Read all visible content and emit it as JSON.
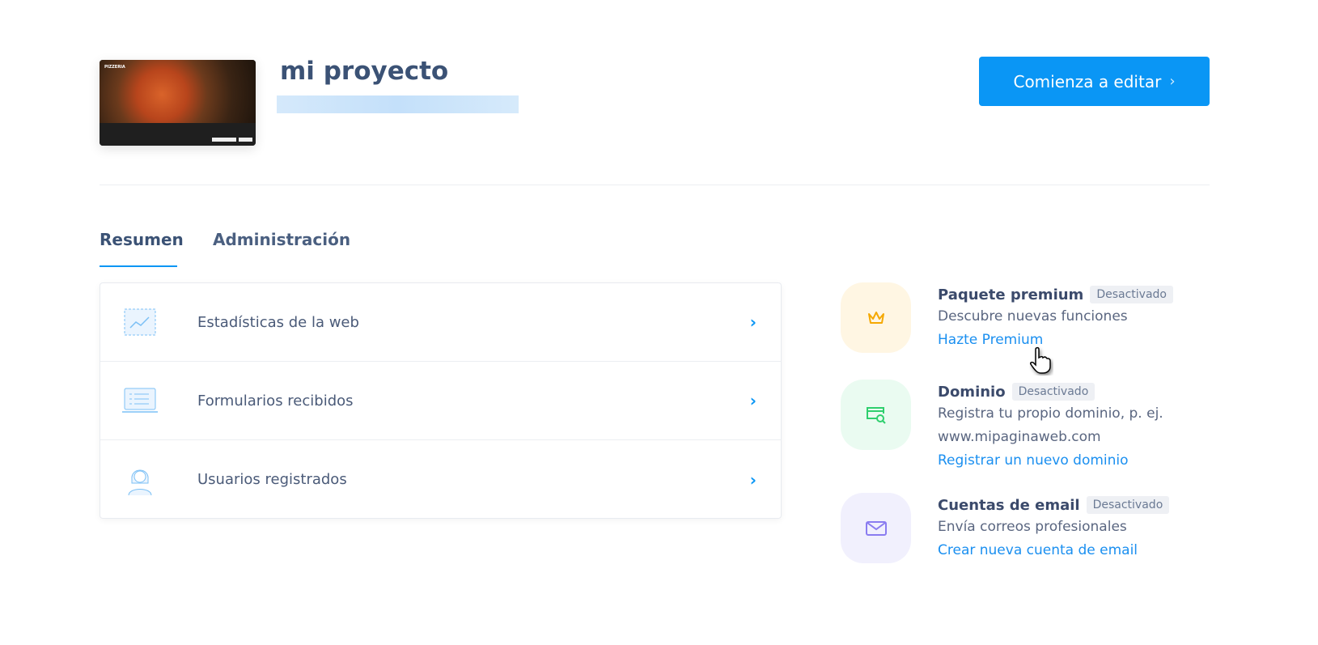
{
  "project": {
    "title": "mi proyecto",
    "thumbnail_logo": "PIZZERIA"
  },
  "header": {
    "edit_button": "Comienza a editar",
    "edit_chevron": "›"
  },
  "tabs": [
    {
      "label": "Resumen",
      "active": true
    },
    {
      "label": "Administración",
      "active": false
    }
  ],
  "list": [
    {
      "label": "Estadísticas de la web",
      "icon": "chart-icon"
    },
    {
      "label": "Formularios recibidos",
      "icon": "form-icon"
    },
    {
      "label": "Usuarios registrados",
      "icon": "user-icon"
    }
  ],
  "arrow": "›",
  "features": [
    {
      "title": "Paquete premium",
      "badge": "Desactivado",
      "desc": [
        "Descubre nuevas funciones"
      ],
      "link": "Hazte Premium",
      "icon": "crown-icon",
      "bg": "#fff6e3",
      "color": "#f5a800"
    },
    {
      "title": "Dominio",
      "badge": "Desactivado",
      "desc": [
        "Registra tu propio dominio, p. ej.",
        "www.mipaginaweb.com"
      ],
      "link": "Registrar un nuevo dominio",
      "icon": "domain-search-icon",
      "bg": "#eafbf1",
      "color": "#2fcf6e"
    },
    {
      "title": "Cuentas de email",
      "badge": "Desactivado",
      "desc": [
        "Envía correos profesionales"
      ],
      "link": "Crear nueva cuenta de email",
      "icon": "mail-icon",
      "bg": "#f1f0fd",
      "color": "#8a7cf0"
    }
  ]
}
